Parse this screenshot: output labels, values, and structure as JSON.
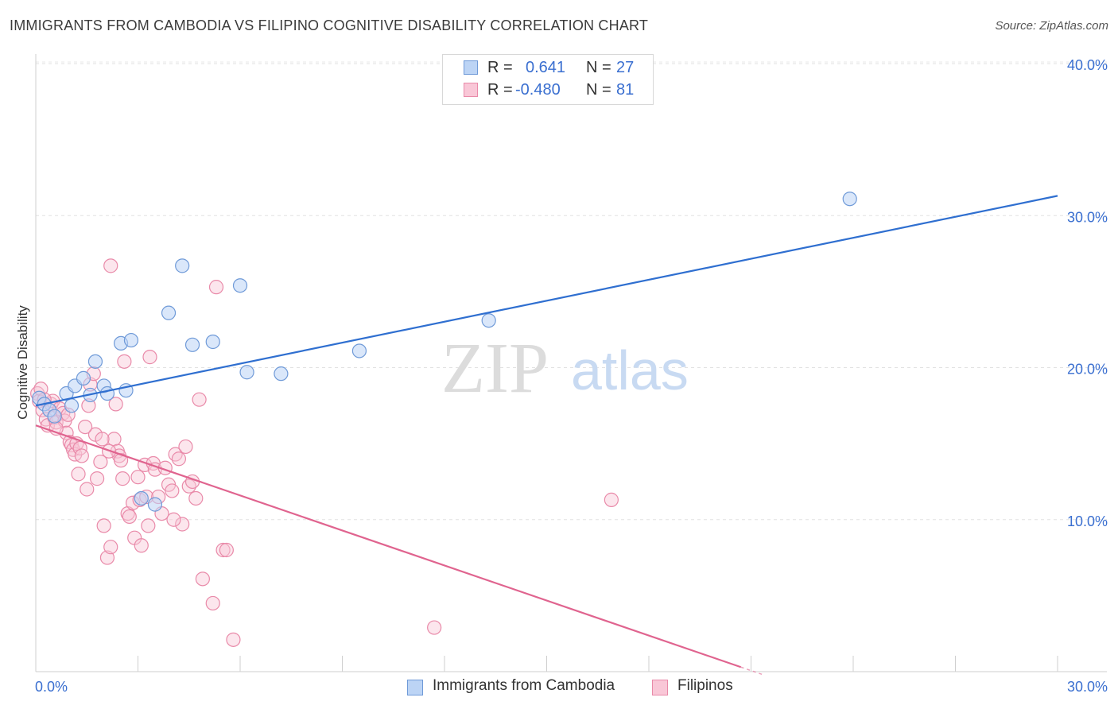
{
  "header": {
    "title": "IMMIGRANTS FROM CAMBODIA VS FILIPINO COGNITIVE DISABILITY CORRELATION CHART",
    "source": "Source: ZipAtlas.com"
  },
  "watermark": {
    "zip": "ZIP",
    "atlas": "atlas"
  },
  "legend": {
    "r_label": "R =",
    "n_label": "N =",
    "series1": {
      "r": "0.641",
      "n": "27"
    },
    "series2": {
      "r": "-0.480",
      "n": "81"
    }
  },
  "bottom_legend": {
    "series1": "Immigrants from Cambodia",
    "series2": "Filipinos"
  },
  "colors": {
    "blue_line": "#2f6fd0",
    "blue_fill": "#bcd4f5",
    "blue_stroke": "#6f9ad8",
    "pink_line": "#e0648f",
    "pink_fill": "#f9c7d7",
    "pink_stroke": "#e98aa9",
    "axis_text": "#3a6fd0"
  },
  "chart_data": {
    "type": "scatter",
    "title": "IMMIGRANTS FROM CAMBODIA VS FILIPINO COGNITIVE DISABILITY CORRELATION CHART",
    "xlabel": "",
    "ylabel": "Cognitive Disability",
    "xlim": [
      0,
      30
    ],
    "ylim": [
      0,
      40
    ],
    "x_tick_labels": [
      "0.0%",
      "30.0%"
    ],
    "y_ticks": [
      10,
      20,
      30,
      40
    ],
    "y_tick_labels": [
      "10.0%",
      "20.0%",
      "30.0%",
      "40.0%"
    ],
    "series": [
      {
        "name": "Immigrants from Cambodia",
        "r": 0.641,
        "n": 27,
        "trend": {
          "x0": 0,
          "y0": 17.5,
          "x1": 30,
          "y1": 31.3
        },
        "points": [
          [
            0.1,
            18.0
          ],
          [
            0.25,
            17.6
          ],
          [
            0.4,
            17.2
          ],
          [
            0.55,
            16.8
          ],
          [
            0.9,
            18.3
          ],
          [
            1.05,
            17.5
          ],
          [
            1.15,
            18.8
          ],
          [
            1.4,
            19.3
          ],
          [
            1.6,
            18.2
          ],
          [
            1.75,
            20.4
          ],
          [
            2.0,
            18.8
          ],
          [
            2.1,
            18.3
          ],
          [
            2.5,
            21.6
          ],
          [
            2.65,
            18.5
          ],
          [
            2.8,
            21.8
          ],
          [
            3.1,
            11.4
          ],
          [
            3.5,
            11.0
          ],
          [
            3.9,
            23.6
          ],
          [
            4.3,
            26.7
          ],
          [
            4.6,
            21.5
          ],
          [
            5.2,
            21.7
          ],
          [
            6.0,
            25.4
          ],
          [
            6.2,
            19.7
          ],
          [
            7.2,
            19.6
          ],
          [
            9.5,
            21.1
          ],
          [
            13.3,
            23.1
          ],
          [
            23.9,
            31.1
          ]
        ]
      },
      {
        "name": "Filipinos",
        "r": -0.48,
        "n": 81,
        "trend": {
          "x0": 0,
          "y0": 16.2,
          "x1": 20.7,
          "y1": 0.3
        },
        "points": [
          [
            0.05,
            18.3
          ],
          [
            0.1,
            17.8
          ],
          [
            0.15,
            18.6
          ],
          [
            0.2,
            17.2
          ],
          [
            0.3,
            16.6
          ],
          [
            0.35,
            16.2
          ],
          [
            0.45,
            17.6
          ],
          [
            0.5,
            17.8
          ],
          [
            0.55,
            16.7
          ],
          [
            0.6,
            16.4
          ],
          [
            0.7,
            17.3
          ],
          [
            0.8,
            17.0
          ],
          [
            0.85,
            16.5
          ],
          [
            0.9,
            15.7
          ],
          [
            1.0,
            15.1
          ],
          [
            1.05,
            14.9
          ],
          [
            1.1,
            14.6
          ],
          [
            1.15,
            14.3
          ],
          [
            1.2,
            15.0
          ],
          [
            1.3,
            14.7
          ],
          [
            1.35,
            14.2
          ],
          [
            1.5,
            12.0
          ],
          [
            1.55,
            17.5
          ],
          [
            1.6,
            18.9
          ],
          [
            1.7,
            19.6
          ],
          [
            1.75,
            15.6
          ],
          [
            1.8,
            12.7
          ],
          [
            1.9,
            13.8
          ],
          [
            2.0,
            9.6
          ],
          [
            2.1,
            7.5
          ],
          [
            2.2,
            8.2
          ],
          [
            2.3,
            15.3
          ],
          [
            2.35,
            17.6
          ],
          [
            2.4,
            14.5
          ],
          [
            2.45,
            14.2
          ],
          [
            2.5,
            13.9
          ],
          [
            2.55,
            12.7
          ],
          [
            2.6,
            20.4
          ],
          [
            2.7,
            10.4
          ],
          [
            2.75,
            10.2
          ],
          [
            2.85,
            11.1
          ],
          [
            2.9,
            8.8
          ],
          [
            3.0,
            12.8
          ],
          [
            3.05,
            11.3
          ],
          [
            3.1,
            8.3
          ],
          [
            3.2,
            13.6
          ],
          [
            3.25,
            11.5
          ],
          [
            3.3,
            9.6
          ],
          [
            3.45,
            13.7
          ],
          [
            3.5,
            13.3
          ],
          [
            3.6,
            11.5
          ],
          [
            3.7,
            10.4
          ],
          [
            3.8,
            13.4
          ],
          [
            3.9,
            12.3
          ],
          [
            4.0,
            11.9
          ],
          [
            4.1,
            14.3
          ],
          [
            4.2,
            14.0
          ],
          [
            4.3,
            9.7
          ],
          [
            4.4,
            14.8
          ],
          [
            4.5,
            12.2
          ],
          [
            4.6,
            12.5
          ],
          [
            4.7,
            11.4
          ],
          [
            4.8,
            17.9
          ],
          [
            4.9,
            6.1
          ],
          [
            5.2,
            4.5
          ],
          [
            5.3,
            25.3
          ],
          [
            5.5,
            8.0
          ],
          [
            5.6,
            8.0
          ],
          [
            5.8,
            2.1
          ],
          [
            2.2,
            26.7
          ],
          [
            0.6,
            16.0
          ],
          [
            1.45,
            16.1
          ],
          [
            1.95,
            15.3
          ],
          [
            0.25,
            17.9
          ],
          [
            0.95,
            16.9
          ],
          [
            3.35,
            20.7
          ],
          [
            2.15,
            14.5
          ],
          [
            1.25,
            13.0
          ],
          [
            4.05,
            10.0
          ],
          [
            11.7,
            2.9
          ],
          [
            16.9,
            11.3
          ]
        ]
      }
    ]
  }
}
